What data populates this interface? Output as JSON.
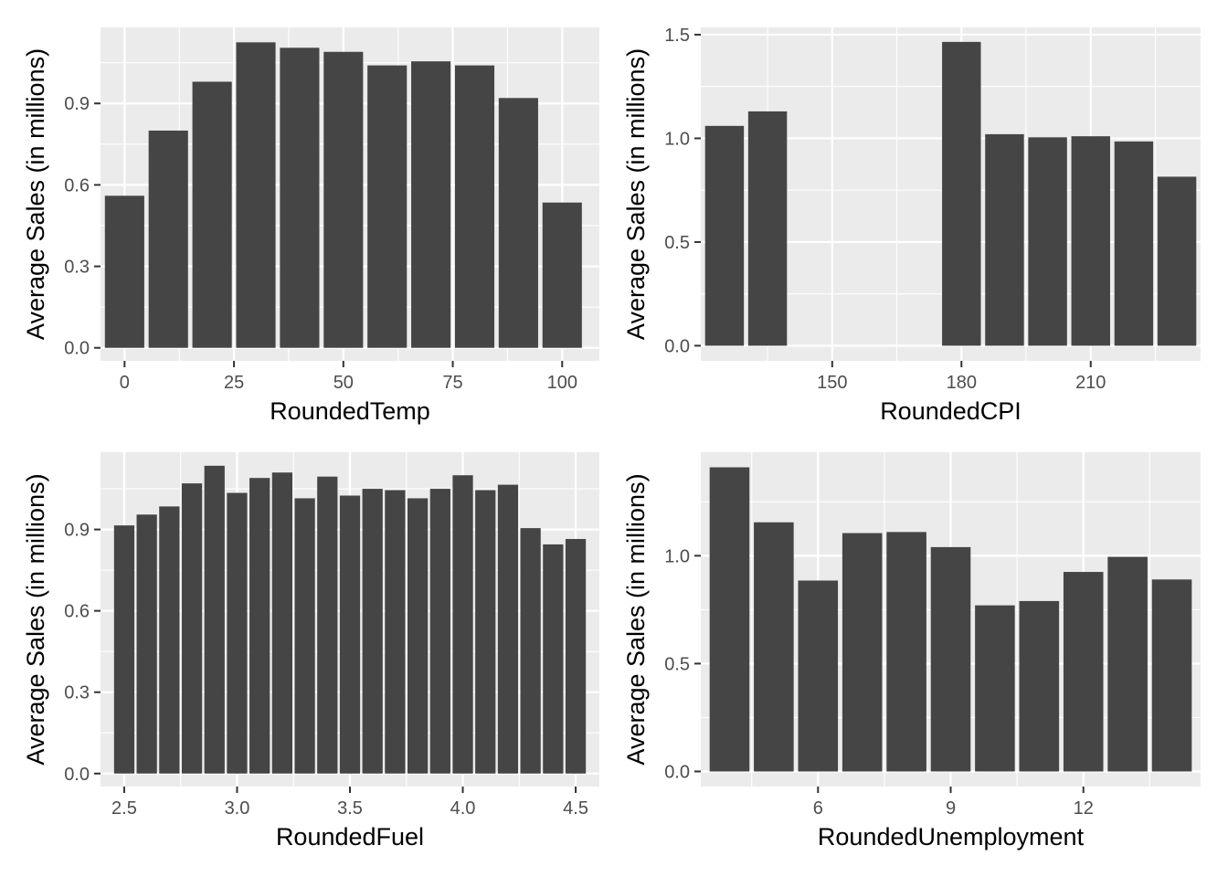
{
  "chart_data": [
    {
      "type": "bar",
      "xlabel": "RoundedTemp",
      "ylabel": "Average Sales (in millions)",
      "x": [
        0,
        10,
        20,
        30,
        40,
        50,
        60,
        70,
        80,
        90,
        100
      ],
      "values": [
        0.56,
        0.8,
        0.98,
        1.125,
        1.105,
        1.09,
        1.04,
        1.055,
        1.04,
        0.92,
        0.535
      ],
      "xlim": [
        -5.5,
        108.5
      ],
      "ylim": [
        -0.048,
        1.18
      ],
      "xticks": [
        0,
        25,
        50,
        75,
        100
      ],
      "xtick_labels": [
        "0",
        "25",
        "50",
        "75",
        "100"
      ],
      "yticks": [
        0,
        0.3,
        0.6,
        0.9
      ],
      "ytick_labels": [
        "0.0",
        "0.3",
        "0.6",
        "0.9"
      ],
      "bar_width": 9,
      "grid": true
    },
    {
      "type": "bar",
      "xlabel": "RoundedCPI",
      "ylabel": "Average Sales (in millions)",
      "x": [
        125,
        135,
        180,
        190,
        200,
        210,
        220,
        230
      ],
      "values": [
        1.06,
        1.13,
        1.465,
        1.02,
        1.005,
        1.01,
        0.985,
        0.815
      ],
      "xlim": [
        119.5,
        235.5
      ],
      "ylim": [
        -0.073,
        1.535
      ],
      "xticks": [
        150,
        180,
        210
      ],
      "xtick_labels": [
        "150",
        "180",
        "210"
      ],
      "yticks": [
        0,
        0.5,
        1.0,
        1.5
      ],
      "ytick_labels": [
        "0.0",
        "0.5",
        "1.0",
        "1.5"
      ],
      "bar_width": 9,
      "grid": true
    },
    {
      "type": "bar",
      "xlabel": "RoundedFuel",
      "ylabel": "Average Sales (in millions)",
      "x": [
        2.5,
        2.6,
        2.7,
        2.8,
        2.9,
        3.0,
        3.1,
        3.2,
        3.3,
        3.4,
        3.5,
        3.6,
        3.7,
        3.8,
        3.9,
        4.0,
        4.1,
        4.2,
        4.3,
        4.4,
        4.5
      ],
      "values": [
        0.915,
        0.955,
        0.985,
        1.07,
        1.135,
        1.035,
        1.09,
        1.11,
        1.015,
        1.095,
        1.025,
        1.05,
        1.045,
        1.015,
        1.05,
        1.1,
        1.045,
        1.065,
        0.905,
        0.845,
        0.865
      ],
      "xlim": [
        2.395,
        4.605
      ],
      "ylim": [
        -0.048,
        1.185
      ],
      "xticks": [
        2.5,
        3.0,
        3.5,
        4.0,
        4.5
      ],
      "xtick_labels": [
        "2.5",
        "3.0",
        "3.5",
        "4.0",
        "4.5"
      ],
      "yticks": [
        0,
        0.3,
        0.6,
        0.9
      ],
      "ytick_labels": [
        "0.0",
        "0.3",
        "0.6",
        "0.9"
      ],
      "bar_width": 0.09,
      "grid": true
    },
    {
      "type": "bar",
      "xlabel": "RoundedUnemployment",
      "ylabel": "Average Sales (in millions)",
      "x": [
        4,
        5,
        6,
        7,
        8,
        9,
        10,
        11,
        12,
        13,
        14
      ],
      "values": [
        1.41,
        1.155,
        0.885,
        1.105,
        1.11,
        1.04,
        0.77,
        0.79,
        0.925,
        0.995,
        0.89
      ],
      "xlim": [
        3.35,
        14.65
      ],
      "ylim": [
        -0.07,
        1.48
      ],
      "xticks": [
        6,
        9,
        12
      ],
      "xtick_labels": [
        "6",
        "9",
        "12"
      ],
      "yticks": [
        0,
        0.5,
        1.0
      ],
      "ytick_labels": [
        "0.0",
        "0.5",
        "1.0"
      ],
      "bar_width": 0.9,
      "grid": true
    }
  ],
  "colors": {
    "panel_background": "#ebebeb",
    "grid_line": "#ffffff",
    "bar_fill": "#454545",
    "tick_text": "#4d4d4d",
    "tick_mark": "#333333",
    "title_text": "#000000"
  }
}
